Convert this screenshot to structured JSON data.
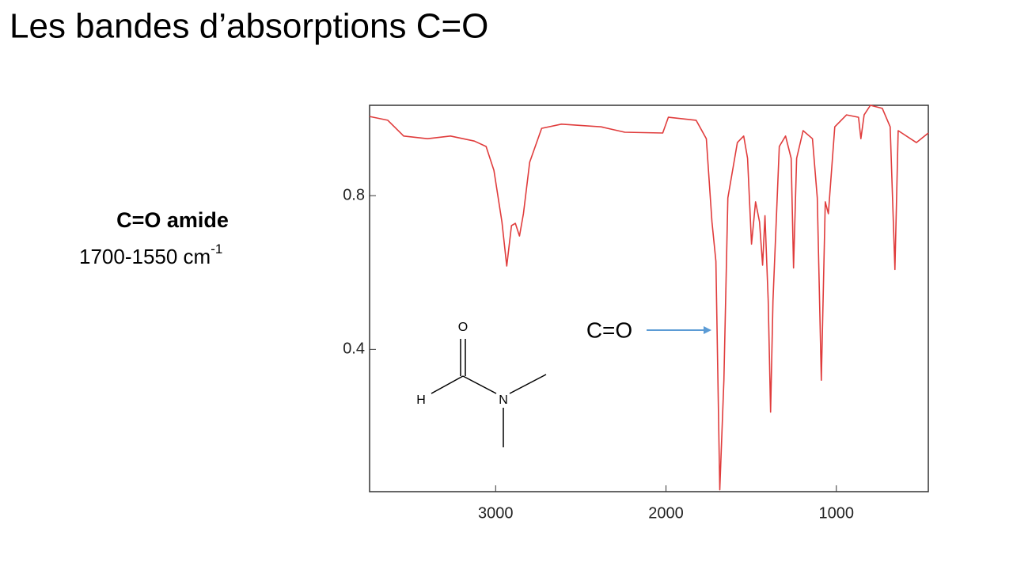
{
  "title": "Les bandes d’absorptions C=O",
  "side_label": {
    "heading": "C=O amide",
    "range": "1700-1550 cm",
    "exponent": "-1"
  },
  "chart_data": {
    "type": "line",
    "color": "#e03c3c",
    "x": [
      3740,
      3633,
      3540,
      3400,
      3265,
      3125,
      3056,
      3010,
      2963,
      2935,
      2907,
      2884,
      2860,
      2837,
      2800,
      2730,
      2614,
      2381,
      2242,
      2019,
      1986,
      1823,
      1763,
      1730,
      1707,
      1684,
      1660,
      1637,
      1581,
      1544,
      1521,
      1498,
      1474,
      1451,
      1433,
      1419,
      1400,
      1386,
      1372,
      1335,
      1298,
      1265,
      1251,
      1233,
      1195,
      1140,
      1112,
      1088,
      1065,
      1047,
      1009,
      940,
      870,
      856,
      837,
      800,
      730,
      684,
      656,
      637,
      530,
      460
    ],
    "values": [
      1.006,
      0.996,
      0.955,
      0.948,
      0.955,
      0.942,
      0.928,
      0.866,
      0.732,
      0.617,
      0.722,
      0.728,
      0.695,
      0.753,
      0.887,
      0.975,
      0.986,
      0.979,
      0.965,
      0.963,
      1.004,
      0.996,
      0.948,
      0.732,
      0.629,
      0.035,
      0.32,
      0.794,
      0.938,
      0.955,
      0.897,
      0.674,
      0.784,
      0.732,
      0.619,
      0.748,
      0.526,
      0.237,
      0.526,
      0.928,
      0.955,
      0.897,
      0.612,
      0.897,
      0.969,
      0.948,
      0.794,
      0.32,
      0.784,
      0.753,
      0.979,
      1.01,
      1.004,
      0.948,
      1.01,
      1.035,
      1.027,
      0.979,
      0.608,
      0.969,
      0.938,
      0.963
    ],
    "xlim": [
      3740,
      460
    ],
    "ylim": [
      0.03,
      1.035
    ],
    "xticks": [
      3000,
      2000,
      1000
    ],
    "yticks": [
      0.8,
      0.4
    ],
    "annotations": {
      "peak": "C=O",
      "oxygen": "O",
      "hydrogen": "H",
      "nitrogen": "N"
    }
  }
}
